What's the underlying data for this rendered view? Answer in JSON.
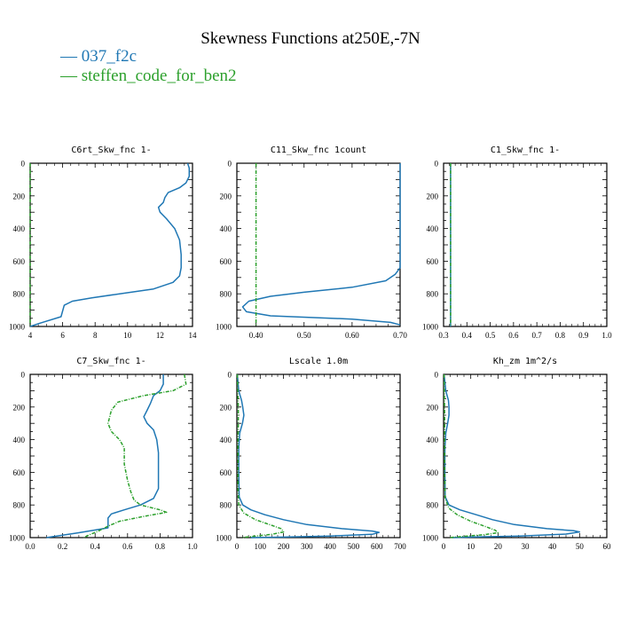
{
  "figure": {
    "title": "Skewness Functions at250E,-7N",
    "legend": [
      {
        "label": "— 037_f2c",
        "color": "#1f77b4"
      },
      {
        "label": "— steffen_code_for_ben2",
        "color": "#2ca02c"
      }
    ]
  },
  "colors": {
    "series_a": "#1f77b4",
    "series_b": "#2ca02c"
  },
  "chart_data": [
    {
      "type": "line",
      "title": "C6rt_Skw_fnc  1-",
      "xlim": [
        4,
        14
      ],
      "ylim": [
        1000,
        0
      ],
      "xticks": [
        4,
        6,
        8,
        10,
        12,
        14
      ],
      "xtick_labels": [
        "4",
        "6",
        "8",
        "10",
        "12",
        "14"
      ],
      "yticks": [
        0,
        200,
        400,
        600,
        800,
        1000
      ],
      "ytick_labels": [
        "0",
        "200",
        "400",
        "600",
        "800",
        "1000"
      ],
      "series": [
        {
          "name": "037_f2c",
          "color": "#1f77b4",
          "dashed": false,
          "points": [
            [
              13.7,
              0
            ],
            [
              13.8,
              30
            ],
            [
              13.8,
              80
            ],
            [
              13.6,
              120
            ],
            [
              13.2,
              150
            ],
            [
              12.5,
              180
            ],
            [
              12.3,
              210
            ],
            [
              12.2,
              240
            ],
            [
              11.9,
              270
            ],
            [
              12.0,
              300
            ],
            [
              12.4,
              340
            ],
            [
              12.9,
              400
            ],
            [
              13.2,
              470
            ],
            [
              13.3,
              560
            ],
            [
              13.3,
              640
            ],
            [
              13.2,
              690
            ],
            [
              12.8,
              730
            ],
            [
              11.6,
              770
            ],
            [
              9.5,
              800
            ],
            [
              7.8,
              825
            ],
            [
              6.6,
              845
            ],
            [
              6.1,
              870
            ],
            [
              5.9,
              940
            ],
            [
              4.6,
              980
            ],
            [
              4.0,
              1000
            ]
          ]
        },
        {
          "name": "steffen_code_for_ben2",
          "color": "#2ca02c",
          "dashed": true,
          "points": [
            [
              4.0,
              0
            ],
            [
              4.0,
              1000
            ]
          ]
        }
      ]
    },
    {
      "type": "line",
      "title": "C11_Skw_fnc  1count",
      "xlim": [
        0.36,
        0.7
      ],
      "ylim": [
        1000,
        0
      ],
      "xticks": [
        0.4,
        0.5,
        0.6,
        0.7
      ],
      "xtick_labels": [
        "0.40",
        "0.50",
        "0.60",
        "0.70"
      ],
      "yticks": [
        0,
        200,
        400,
        600,
        800,
        1000
      ],
      "ytick_labels": [
        "0",
        "200",
        "400",
        "600",
        "800",
        "1000"
      ],
      "series": [
        {
          "name": "037_f2c",
          "color": "#1f77b4",
          "dashed": false,
          "points": [
            [
              0.7,
              0
            ],
            [
              0.7,
              640
            ],
            [
              0.69,
              680
            ],
            [
              0.67,
              720
            ],
            [
              0.6,
              760
            ],
            [
              0.5,
              790
            ],
            [
              0.43,
              815
            ],
            [
              0.385,
              845
            ],
            [
              0.372,
              880
            ],
            [
              0.38,
              910
            ],
            [
              0.43,
              935
            ],
            [
              0.6,
              955
            ],
            [
              0.68,
              975
            ],
            [
              0.7,
              990
            ]
          ]
        },
        {
          "name": "steffen_code_for_ben2",
          "color": "#2ca02c",
          "dashed": true,
          "points": [
            [
              0.4,
              0
            ],
            [
              0.4,
              1000
            ]
          ]
        }
      ]
    },
    {
      "type": "line",
      "title": "C1_Skw_fnc  1-",
      "xlim": [
        0.3,
        1.0
      ],
      "ylim": [
        1000,
        0
      ],
      "xticks": [
        0.3,
        0.4,
        0.5,
        0.6,
        0.7,
        0.8,
        0.9,
        1.0
      ],
      "xtick_labels": [
        "0.3",
        "0.4",
        "0.5",
        "0.6",
        "0.7",
        "0.8",
        "0.9",
        "1.0"
      ],
      "yticks": [
        0,
        200,
        400,
        600,
        800,
        1000
      ],
      "ytick_labels": [
        "0",
        "200",
        "400",
        "600",
        "800",
        "1000"
      ],
      "series": [
        {
          "name": "037_f2c",
          "color": "#1f77b4",
          "dashed": false,
          "points": [
            [
              0.33,
              0
            ],
            [
              0.33,
              1000
            ]
          ]
        },
        {
          "name": "steffen_code_for_ben2",
          "color": "#2ca02c",
          "dashed": true,
          "points": [
            [
              0.33,
              0
            ],
            [
              0.33,
              1000
            ]
          ]
        }
      ]
    },
    {
      "type": "line",
      "title": "C7_Skw_fnc  1-",
      "xlim": [
        0.0,
        1.0
      ],
      "ylim": [
        1000,
        0
      ],
      "xticks": [
        0.0,
        0.2,
        0.4,
        0.6,
        0.8,
        1.0
      ],
      "xtick_labels": [
        "0.0",
        "0.2",
        "0.4",
        "0.6",
        "0.8",
        "1.0"
      ],
      "yticks": [
        0,
        200,
        400,
        600,
        800,
        1000
      ],
      "ytick_labels": [
        "0",
        "200",
        "400",
        "600",
        "800",
        "1000"
      ],
      "series": [
        {
          "name": "037_f2c",
          "color": "#1f77b4",
          "dashed": false,
          "points": [
            [
              0.82,
              0
            ],
            [
              0.82,
              60
            ],
            [
              0.8,
              100
            ],
            [
              0.76,
              130
            ],
            [
              0.74,
              180
            ],
            [
              0.72,
              220
            ],
            [
              0.7,
              260
            ],
            [
              0.72,
              300
            ],
            [
              0.76,
              340
            ],
            [
              0.78,
              400
            ],
            [
              0.79,
              480
            ],
            [
              0.79,
              600
            ],
            [
              0.79,
              700
            ],
            [
              0.76,
              760
            ],
            [
              0.68,
              800
            ],
            [
              0.58,
              830
            ],
            [
              0.5,
              855
            ],
            [
              0.48,
              880
            ],
            [
              0.48,
              940
            ],
            [
              0.3,
              970
            ],
            [
              0.2,
              985
            ],
            [
              0.1,
              1000
            ]
          ]
        },
        {
          "name": "steffen_code_for_ben2",
          "color": "#2ca02c",
          "dashed": true,
          "points": [
            [
              0.95,
              0
            ],
            [
              0.96,
              60
            ],
            [
              0.88,
              100
            ],
            [
              0.7,
              130
            ],
            [
              0.54,
              170
            ],
            [
              0.5,
              220
            ],
            [
              0.48,
              300
            ],
            [
              0.5,
              350
            ],
            [
              0.55,
              400
            ],
            [
              0.58,
              450
            ],
            [
              0.58,
              550
            ],
            [
              0.6,
              650
            ],
            [
              0.62,
              720
            ],
            [
              0.64,
              770
            ],
            [
              0.68,
              800
            ],
            [
              0.8,
              830
            ],
            [
              0.84,
              845
            ],
            [
              0.7,
              870
            ],
            [
              0.55,
              900
            ],
            [
              0.48,
              930
            ],
            [
              0.42,
              960
            ],
            [
              0.36,
              985
            ],
            [
              0.33,
              1000
            ]
          ]
        }
      ]
    },
    {
      "type": "line",
      "title": "Lscale  1.0m",
      "xlim": [
        0,
        700
      ],
      "ylim": [
        1000,
        0
      ],
      "xticks": [
        0,
        100,
        200,
        300,
        400,
        500,
        600,
        700
      ],
      "xtick_labels": [
        "0",
        "100",
        "200",
        "300",
        "400",
        "500",
        "600",
        "700"
      ],
      "yticks": [
        0,
        200,
        400,
        600,
        800,
        1000
      ],
      "ytick_labels": [
        "0",
        "200",
        "400",
        "600",
        "800",
        "1000"
      ],
      "series": [
        {
          "name": "037_f2c",
          "color": "#1f77b4",
          "dashed": false,
          "points": [
            [
              2,
              0
            ],
            [
              8,
              100
            ],
            [
              20,
              160
            ],
            [
              25,
              200
            ],
            [
              30,
              250
            ],
            [
              24,
              300
            ],
            [
              12,
              360
            ],
            [
              8,
              450
            ],
            [
              8,
              600
            ],
            [
              10,
              750
            ],
            [
              25,
              800
            ],
            [
              60,
              830
            ],
            [
              120,
              860
            ],
            [
              200,
              890
            ],
            [
              300,
              920
            ],
            [
              450,
              945
            ],
            [
              580,
              960
            ],
            [
              610,
              968
            ],
            [
              580,
              980
            ],
            [
              400,
              990
            ],
            [
              200,
              997
            ],
            [
              60,
              1000
            ]
          ]
        },
        {
          "name": "steffen_code_for_ben2",
          "color": "#2ca02c",
          "dashed": true,
          "points": [
            [
              2,
              0
            ],
            [
              4,
              120
            ],
            [
              6,
              200
            ],
            [
              6,
              300
            ],
            [
              5,
              400
            ],
            [
              5,
              550
            ],
            [
              5,
              700
            ],
            [
              8,
              800
            ],
            [
              30,
              850
            ],
            [
              80,
              890
            ],
            [
              140,
              920
            ],
            [
              190,
              945
            ],
            [
              200,
              965
            ],
            [
              150,
              980
            ],
            [
              70,
              992
            ],
            [
              20,
              1000
            ]
          ]
        }
      ]
    },
    {
      "type": "line",
      "title": "Kh_zm  1m^2/s",
      "xlim": [
        0,
        60
      ],
      "ylim": [
        1000,
        0
      ],
      "xticks": [
        0,
        10,
        20,
        30,
        40,
        50,
        60
      ],
      "xtick_labels": [
        "0",
        "10",
        "20",
        "30",
        "40",
        "50",
        "60"
      ],
      "yticks": [
        0,
        200,
        400,
        600,
        800,
        1000
      ],
      "ytick_labels": [
        "0",
        "200",
        "400",
        "600",
        "800",
        "1000"
      ],
      "series": [
        {
          "name": "037_f2c",
          "color": "#1f77b4",
          "dashed": false,
          "points": [
            [
              0.2,
              0
            ],
            [
              0.8,
              100
            ],
            [
              1.8,
              160
            ],
            [
              2.0,
              200
            ],
            [
              2.0,
              250
            ],
            [
              1.5,
              300
            ],
            [
              0.8,
              360
            ],
            [
              0.5,
              450
            ],
            [
              0.5,
              600
            ],
            [
              0.6,
              750
            ],
            [
              2,
              800
            ],
            [
              6,
              830
            ],
            [
              12,
              860
            ],
            [
              18,
              890
            ],
            [
              26,
              920
            ],
            [
              38,
              945
            ],
            [
              48,
              958
            ],
            [
              50,
              965
            ],
            [
              45,
              978
            ],
            [
              28,
              990
            ],
            [
              10,
              997
            ],
            [
              3,
              1000
            ]
          ]
        },
        {
          "name": "steffen_code_for_ben2",
          "color": "#2ca02c",
          "dashed": true,
          "points": [
            [
              0.2,
              0
            ],
            [
              0.3,
              120
            ],
            [
              0.4,
              250
            ],
            [
              0.4,
              400
            ],
            [
              0.4,
              600
            ],
            [
              0.6,
              760
            ],
            [
              2,
              820
            ],
            [
              5,
              860
            ],
            [
              10,
              900
            ],
            [
              15,
              930
            ],
            [
              19,
              955
            ],
            [
              20,
              970
            ],
            [
              15,
              982
            ],
            [
              7,
              993
            ],
            [
              2,
              1000
            ]
          ]
        }
      ]
    }
  ]
}
